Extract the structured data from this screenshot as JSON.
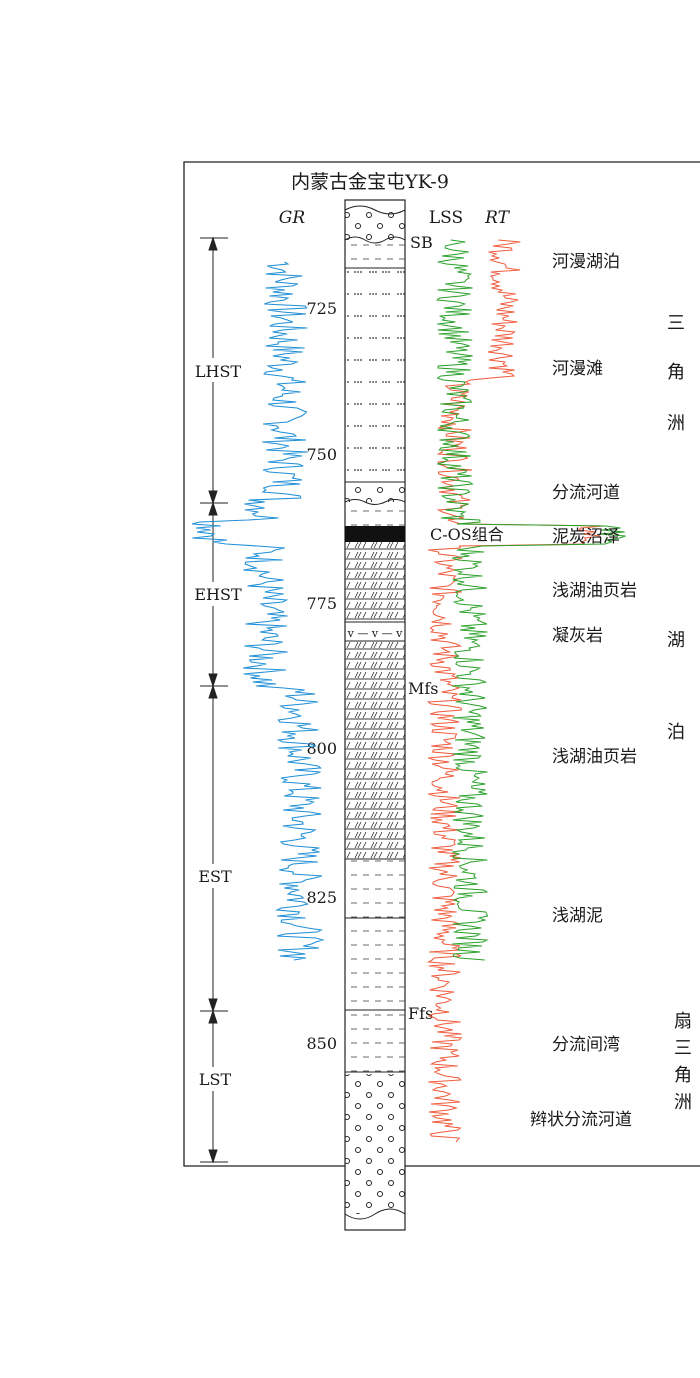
{
  "title": "内蒙古金宝屯YK-9",
  "headers": {
    "gr": "GR",
    "lss": "LSS",
    "rt": "RT"
  },
  "depth_ticks": [
    "725",
    "750",
    "775",
    "800",
    "825",
    "850"
  ],
  "systems_tracts": [
    "LHST",
    "EHST",
    "EST",
    "LST"
  ],
  "surfaces": [
    "SB",
    "C-OS组合",
    "Mfs",
    "Ffs"
  ],
  "facies": [
    "河漫湖泊",
    "河漫滩",
    "分流河道",
    "泥炭沼泽",
    "浅湖油页岩",
    "凝灰岩",
    "浅湖油页岩",
    "浅湖泥",
    "分流间湾",
    "辫状分流河道"
  ],
  "environments": [
    {
      "chars": [
        "三",
        "角",
        "洲"
      ]
    },
    {
      "chars": [
        "湖",
        "泊"
      ]
    },
    {
      "chars": [
        "扇",
        "三",
        "角",
        "洲"
      ]
    }
  ],
  "tuff_symbol": "v — v — v",
  "colors": {
    "gr": "#1f8fd6",
    "rt": "#f05a3c",
    "lss": "#2aa02a"
  }
}
